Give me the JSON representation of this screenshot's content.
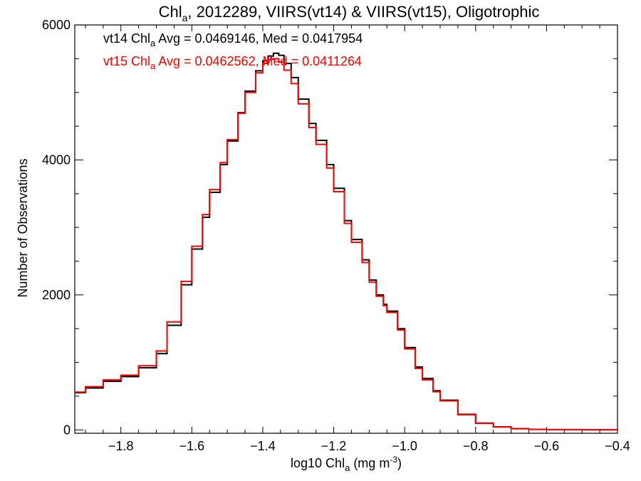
{
  "chart_data": {
    "type": "line",
    "step": true,
    "title_parts": {
      "prefix": "Chl",
      "sub": "a",
      "rest": ", 2012289, VIIRS(vt14) & VIIRS(vt15), Oligotrophic"
    },
    "xlabel_parts": {
      "prefix": "log10 Chl",
      "sub": "a",
      "mid": " (mg m",
      "sup": "-3",
      "suffix": ")"
    },
    "ylabel": "Number of Observations",
    "xlim": [
      -1.93,
      -0.4
    ],
    "ylim": [
      -50,
      6000
    ],
    "x_ticks": [
      -1.8,
      -1.6,
      -1.4,
      -1.2,
      -1.0,
      -0.8,
      -0.6,
      -0.4
    ],
    "x_tick_labels": [
      "−1.8",
      "−1.6",
      "−1.4",
      "−1.2",
      "−1.0",
      "−0.8",
      "−0.6",
      "−0.4"
    ],
    "y_ticks": [
      0,
      2000,
      4000,
      6000
    ],
    "y_tick_labels": [
      "0",
      "2000",
      "4000",
      "6000"
    ],
    "grid": false,
    "annotations": [
      {
        "prefix": "vt14 Chl",
        "sub": "a",
        "rest": " Avg = 0.0469146, Med = 0.0417954",
        "color": "#000000"
      },
      {
        "prefix": "vt15 Chl",
        "sub": "a",
        "rest": " Avg = 0.0462562, Med = 0.0411264",
        "color": "#ff0000"
      }
    ],
    "series": [
      {
        "color": "#000000",
        "x": [
          -1.93,
          -1.9,
          -1.85,
          -1.8,
          -1.75,
          -1.7,
          -1.67,
          -1.63,
          -1.6,
          -1.57,
          -1.55,
          -1.52,
          -1.5,
          -1.47,
          -1.45,
          -1.42,
          -1.4,
          -1.385,
          -1.37,
          -1.355,
          -1.34,
          -1.32,
          -1.3,
          -1.27,
          -1.25,
          -1.22,
          -1.2,
          -1.17,
          -1.15,
          -1.12,
          -1.1,
          -1.08,
          -1.06,
          -1.05,
          -1.02,
          -1.0,
          -0.97,
          -0.95,
          -0.92,
          -0.9,
          -0.85,
          -0.8,
          -0.75,
          -0.7,
          -0.65,
          -0.6,
          -0.5,
          -0.4
        ],
        "y": [
          550,
          620,
          720,
          790,
          920,
          1130,
          1550,
          2150,
          2680,
          3150,
          3520,
          3930,
          4280,
          4700,
          5020,
          5320,
          5470,
          5540,
          5580,
          5550,
          5430,
          5220,
          4900,
          4540,
          4290,
          3930,
          3580,
          3100,
          2820,
          2520,
          2220,
          2000,
          1860,
          1760,
          1500,
          1220,
          930,
          760,
          580,
          440,
          230,
          100,
          45,
          18,
          8,
          4,
          1,
          0
        ]
      },
      {
        "color": "#ff0000",
        "x": [
          -1.93,
          -1.9,
          -1.85,
          -1.8,
          -1.75,
          -1.7,
          -1.67,
          -1.63,
          -1.6,
          -1.57,
          -1.55,
          -1.52,
          -1.5,
          -1.47,
          -1.45,
          -1.42,
          -1.4,
          -1.385,
          -1.37,
          -1.355,
          -1.34,
          -1.32,
          -1.3,
          -1.27,
          -1.25,
          -1.22,
          -1.2,
          -1.17,
          -1.15,
          -1.12,
          -1.1,
          -1.08,
          -1.06,
          -1.05,
          -1.02,
          -1.0,
          -0.97,
          -0.95,
          -0.92,
          -0.9,
          -0.85,
          -0.8,
          -0.75,
          -0.7,
          -0.65,
          -0.6,
          -0.5,
          -0.4
        ],
        "y": [
          560,
          640,
          740,
          810,
          950,
          1170,
          1600,
          2200,
          2720,
          3190,
          3560,
          3960,
          4300,
          4690,
          5000,
          5290,
          5430,
          5490,
          5500,
          5450,
          5330,
          5130,
          4830,
          4480,
          4230,
          3880,
          3530,
          3060,
          2780,
          2480,
          2190,
          1980,
          1840,
          1740,
          1480,
          1200,
          910,
          740,
          565,
          430,
          225,
          96,
          42,
          16,
          7,
          3,
          1,
          0
        ]
      }
    ]
  }
}
